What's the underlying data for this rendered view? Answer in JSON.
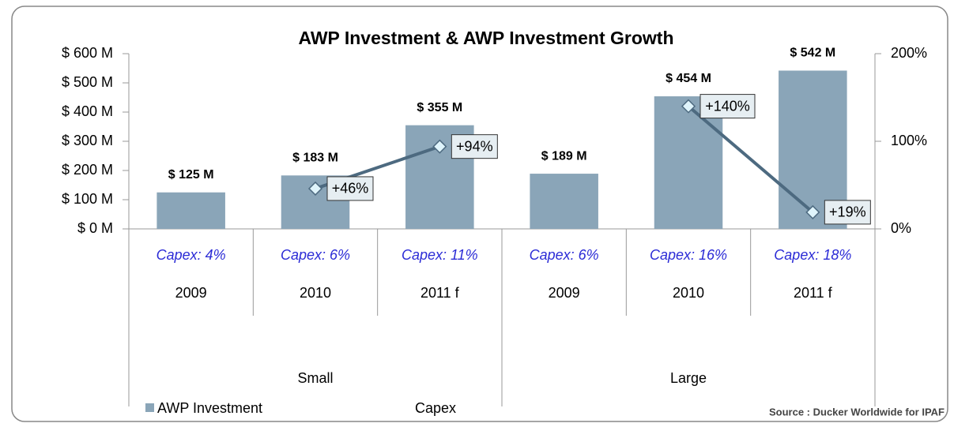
{
  "chart_data": {
    "type": "bar-line",
    "title": "AWP Investment & AWP Investment Growth",
    "categories": [
      "2009",
      "2010",
      "2011 f",
      "2009",
      "2010",
      "2011 f"
    ],
    "groups": [
      "Small",
      "Large"
    ],
    "capex_labels": [
      "Capex: 4%",
      "Capex: 6%",
      "Capex: 11%",
      "Capex: 6%",
      "Capex: 16%",
      "Capex: 18%"
    ],
    "series": [
      {
        "name": "AWP Investment",
        "type": "bar",
        "color": "#8aa5b8",
        "values": [
          125,
          183,
          355,
          189,
          454,
          542
        ],
        "value_labels": [
          "$ 125 M",
          "$ 183 M",
          "$ 355 M",
          "$ 189 M",
          "$ 454 M",
          "$ 542 M"
        ]
      },
      {
        "name": "Capex",
        "type": "line",
        "axis": "y2",
        "color": "#4d6a80",
        "values": [
          null,
          46,
          94,
          null,
          140,
          19
        ],
        "value_labels": [
          null,
          "+46%",
          "+94%",
          null,
          "+140%",
          "+19%"
        ]
      }
    ],
    "ylim": [
      0,
      600
    ],
    "yticks": [
      {
        "value": 0,
        "label": "$ 0 M"
      },
      {
        "value": 100,
        "label": "$ 100 M"
      },
      {
        "value": 200,
        "label": "$ 200 M"
      },
      {
        "value": 300,
        "label": "$ 300 M"
      },
      {
        "value": 400,
        "label": "$ 400 M"
      },
      {
        "value": 500,
        "label": "$ 500 M"
      },
      {
        "value": 600,
        "label": "$ 600 M"
      }
    ],
    "y2lim": [
      0,
      200
    ],
    "y2ticks": [
      {
        "value": 0,
        "label": "0%"
      },
      {
        "value": 100,
        "label": "100%"
      },
      {
        "value": 200,
        "label": "200%"
      }
    ],
    "source": "Source : Ducker Worldwide for IPAF"
  }
}
